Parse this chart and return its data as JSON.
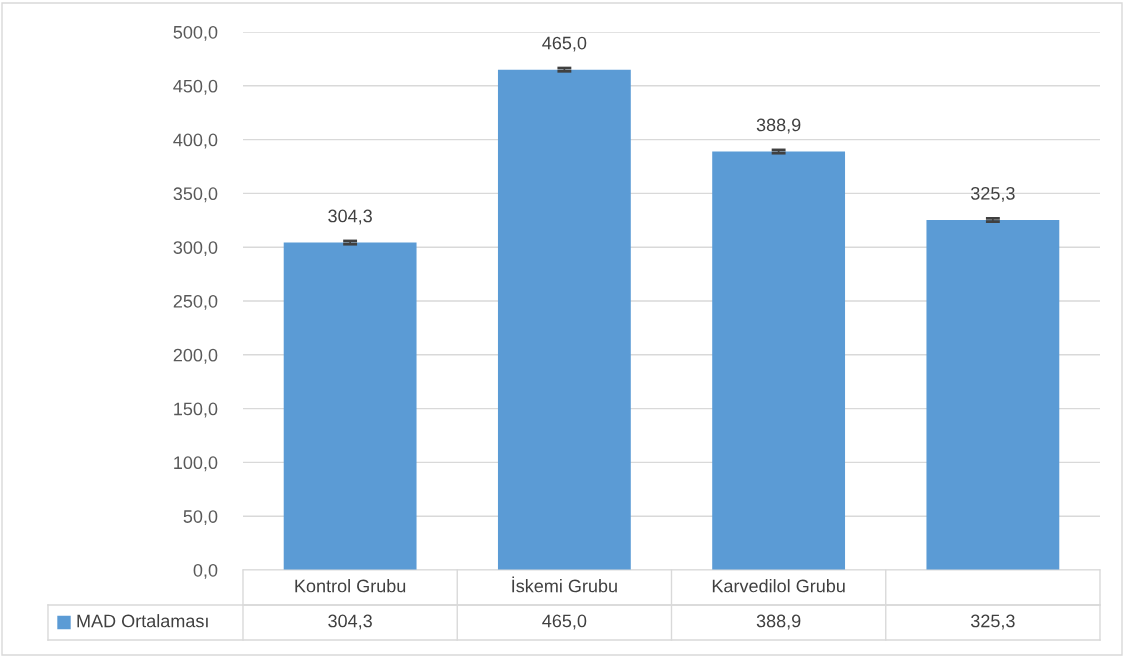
{
  "chart_data": {
    "type": "bar",
    "categories": [
      "Kontrol Grubu",
      "İskemi Grubu",
      "Karvedilol Grubu",
      null
    ],
    "series": [
      {
        "name": "MAD Ortalaması",
        "color": "#5b9bd5",
        "values": [
          304.3,
          465.0,
          388.9,
          325.3
        ],
        "errors": [
          1.5,
          1.5,
          1.5,
          1.5
        ],
        "value_labels": [
          "304,3",
          "465,0",
          "388,9",
          "325,3"
        ]
      }
    ],
    "ylim": [
      0,
      500
    ],
    "yticks": [
      {
        "value": 0,
        "label": "0,0"
      },
      {
        "value": 50,
        "label": "50,0"
      },
      {
        "value": 100,
        "label": "100,0"
      },
      {
        "value": 150,
        "label": "150,0"
      },
      {
        "value": 200,
        "label": "200,0"
      },
      {
        "value": 250,
        "label": "250,0"
      },
      {
        "value": 300,
        "label": "300,0"
      },
      {
        "value": 350,
        "label": "350,0"
      },
      {
        "value": 400,
        "label": "400,0"
      },
      {
        "value": 450,
        "label": "450,0"
      },
      {
        "value": 500,
        "label": "500,0"
      }
    ],
    "grid": "y",
    "legend": "bottom"
  }
}
